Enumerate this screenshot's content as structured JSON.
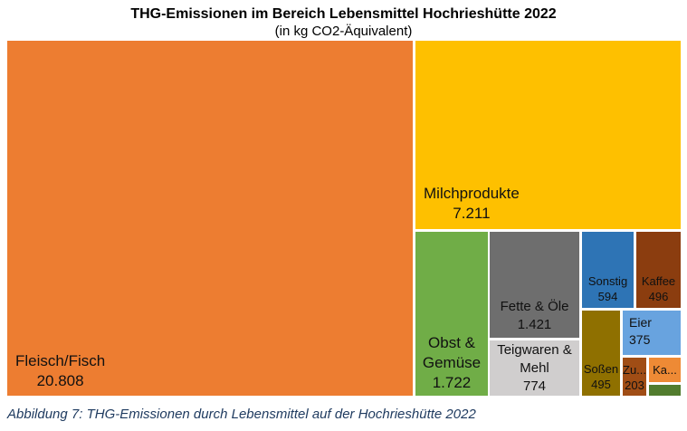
{
  "page": {
    "title": "THG-Emissionen im Bereich Lebensmittel Hochrieshütte 2022",
    "subtitle": "(in kg CO2-Äquivalent)",
    "caption": "Abbildung 7: THG-Emissionen durch Lebensmittel auf der Hochrieshütte 2022"
  },
  "chart_data": {
    "type": "treemap",
    "title": "THG-Emissionen im Bereich Lebensmittel Hochrieshütte 2022",
    "subtitle": "(in kg CO2-Äquivalent)",
    "unit": "kg CO2-Äquivalent",
    "cells": [
      {
        "label": "Fleisch/Fisch",
        "label_display": "Fleisch/Fisch",
        "value": 20808,
        "value_display": "20.808",
        "color": "#ED7D31"
      },
      {
        "label": "Milchprodukte",
        "label_display": "Milchprodukte",
        "value": 7211,
        "value_display": "7.211",
        "color": "#FEC000"
      },
      {
        "label": "Obst & Gemüse",
        "label_display": "Obst &\nGemüse",
        "value": 1722,
        "value_display": "1.722",
        "color": "#70AD47"
      },
      {
        "label": "Fette & Öle",
        "label_display": "Fette & Öle",
        "value": 1421,
        "value_display": "1.421",
        "color": "#6E6E6E"
      },
      {
        "label": "Teigwaren & Mehl",
        "label_display": "Teigwaren &\nMehl",
        "value": 774,
        "value_display": "774",
        "color": "#D0CECE"
      },
      {
        "label": "Sonstig",
        "label_display": "Sonstig",
        "value": 594,
        "value_display": "594",
        "color": "#2E74B5"
      },
      {
        "label": "Kaffee",
        "label_display": "Kaffee",
        "value": 496,
        "value_display": "496",
        "color": "#8B3D0F"
      },
      {
        "label": "Soßen",
        "label_display": "Soßen",
        "value": 495,
        "value_display": "495",
        "color": "#8F7000"
      },
      {
        "label": "Eier",
        "label_display": "Eier",
        "value": 375,
        "value_display": "375",
        "color": "#68A3DF"
      },
      {
        "label": "Zu...",
        "label_display": "Zu...",
        "value": 203,
        "value_display": "203",
        "color": "#A04D15"
      },
      {
        "label": "Ka...",
        "label_display": "Ka...",
        "value_display": "",
        "color": "#EE8A35"
      },
      {
        "label": "",
        "label_display": "",
        "value_display": "",
        "color": "#527C2E"
      }
    ]
  }
}
